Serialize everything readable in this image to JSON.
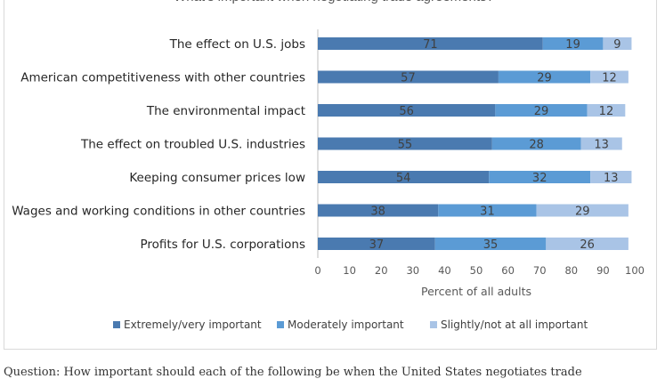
{
  "chart_data": {
    "type": "bar",
    "orientation": "horizontal",
    "stacked": true,
    "title": "What's important when negotiating trade agreements?",
    "xlabel": "Percent of all adults",
    "ylabel": "",
    "xlim": [
      0,
      100
    ],
    "xticks": [
      "0",
      "10",
      "20",
      "30",
      "40",
      "50",
      "60",
      "70",
      "80",
      "90",
      "100"
    ],
    "categories": [
      "The effect on U.S. jobs",
      "American competitiveness with other countries",
      "The environmental impact",
      "The effect on troubled U.S. industries",
      "Keeping consumer prices low",
      "Wages and working conditions in other countries",
      "Profits for U.S. corporations"
    ],
    "series": [
      {
        "name": "Extremely/very important",
        "color": "#4a7ab0",
        "values": [
          71,
          57,
          56,
          55,
          54,
          38,
          37
        ]
      },
      {
        "name": "Moderately important",
        "color": "#5b9bd5",
        "values": [
          19,
          29,
          29,
          28,
          32,
          31,
          35
        ]
      },
      {
        "name": "Slightly/not at all important",
        "color": "#a9c4e6",
        "values": [
          9,
          12,
          12,
          13,
          13,
          29,
          26
        ]
      }
    ],
    "legend_position": "bottom",
    "grid": false
  },
  "caption": "Question: How important should each of the following be when the United States negotiates trade"
}
